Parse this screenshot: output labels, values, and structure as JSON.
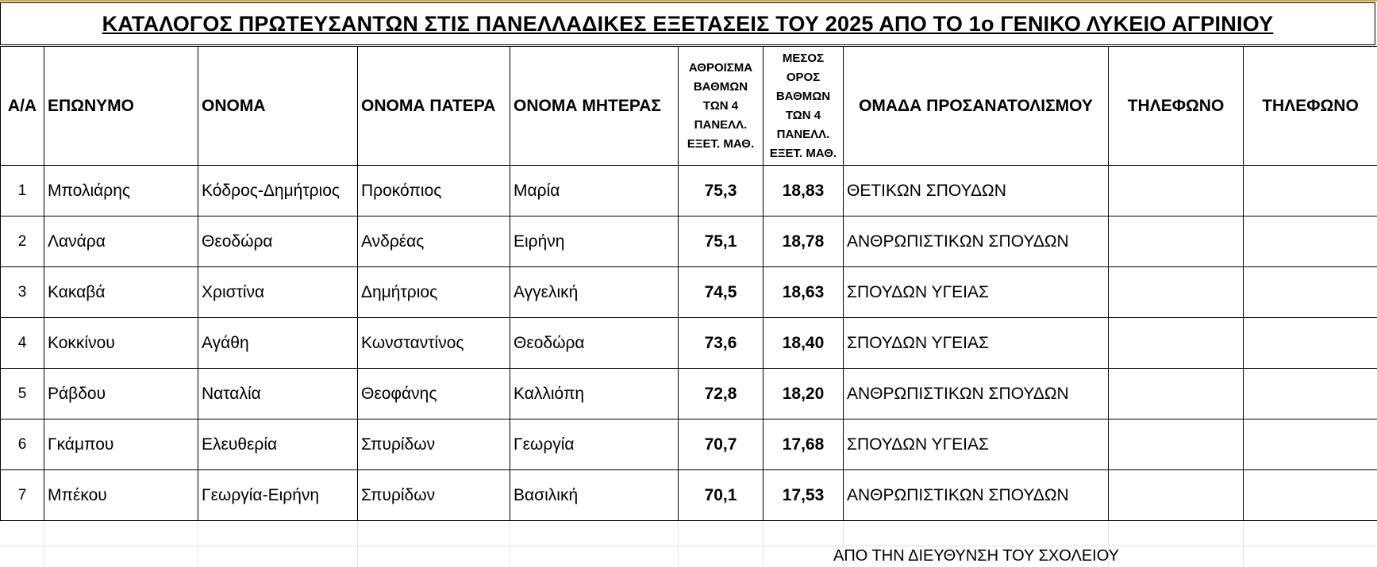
{
  "title": "ΚΑΤΑΛΟΓΟΣ ΠΡΩΤΕΥΣΑΝΤΩΝ ΣΤΙΣ ΠΑΝΕΛΛΑΔΙΚΕΣ ΕΞΕΤΑΣΕΙΣ ΤΟΥ 2025 ΑΠΟ ΤΟ 1ο ΓΕΝΙΚΟ ΛΥΚΕΙΟ ΑΓΡΙΝΙΟΥ",
  "headers": {
    "aa": "Α/Α",
    "surname": "ΕΠΩΝΥΜΟ",
    "name": "ΟΝΟΜΑ",
    "father": "ΟΝΟΜΑ ΠΑΤΕΡΑ",
    "mother": "ΟΝΟΜΑ ΜΗΤΕΡΑΣ",
    "sum": [
      "ΑΘΡΟΙΣΜΑ",
      "ΒΑΘΜΩΝ",
      "ΤΩΝ 4",
      "ΠΑΝΕΛΛ.",
      "ΕΞΕΤ. ΜΑΘ."
    ],
    "avg": [
      "ΜΕΣΟΣ",
      "ΟΡΟΣ",
      "ΒΑΘΜΩΝ",
      "ΤΩΝ 4",
      "ΠΑΝΕΛΛ.",
      "ΕΞΕΤ. ΜΑΘ."
    ],
    "group": "ΟΜΑΔΑ ΠΡΟΣΑΝΑΤΟΛΙΣΜΟΥ",
    "phone1": "ΤΗΛΕΦΩΝΟ",
    "phone2": "ΤΗΛΕΦΩΝΟ"
  },
  "rows": [
    {
      "aa": "1",
      "surname": "Μπολιάρης",
      "name": "Κόδρος-Δημήτριος",
      "father": "Προκόπιος",
      "mother": "Μαρία",
      "sum": "75,3",
      "avg": "18,83",
      "group": "ΘΕΤΙΚΩΝ ΣΠΟΥΔΩΝ",
      "phone1": "",
      "phone2": ""
    },
    {
      "aa": "2",
      "surname": "Λανάρα",
      "name": "Θεοδώρα",
      "father": "Ανδρέας",
      "mother": "Ειρήνη",
      "sum": "75,1",
      "avg": "18,78",
      "group": "ΑΝΘΡΩΠΙΣΤΙΚΩΝ ΣΠΟΥΔΩΝ",
      "phone1": "",
      "phone2": ""
    },
    {
      "aa": "3",
      "surname": "Κακαβά",
      "name": "Χριστίνα",
      "father": "Δημήτριος",
      "mother": "Αγγελική",
      "sum": "74,5",
      "avg": "18,63",
      "group": "ΣΠΟΥΔΩΝ ΥΓΕΙΑΣ",
      "phone1": "",
      "phone2": ""
    },
    {
      "aa": "4",
      "surname": "Κοκκίνου",
      "name": "Αγάθη",
      "father": "Κωνσταντίνος",
      "mother": "Θεοδώρα",
      "sum": "73,6",
      "avg": "18,40",
      "group": "ΣΠΟΥΔΩΝ ΥΓΕΙΑΣ",
      "phone1": "",
      "phone2": ""
    },
    {
      "aa": "5",
      "surname": "Ράβδου",
      "name": "Ναταλία",
      "father": "Θεοφάνης",
      "mother": "Καλλιόπη",
      "sum": "72,8",
      "avg": "18,20",
      "group": "ΑΝΘΡΩΠΙΣΤΙΚΩΝ ΣΠΟΥΔΩΝ",
      "phone1": "",
      "phone2": ""
    },
    {
      "aa": "6",
      "surname": "Γκάμπου",
      "name": "Ελευθερία",
      "father": "Σπυρίδων",
      "mother": "Γεωργία",
      "sum": "70,7",
      "avg": "17,68",
      "group": "ΣΠΟΥΔΩΝ ΥΓΕΙΑΣ",
      "phone1": "",
      "phone2": ""
    },
    {
      "aa": "7",
      "surname": "Μπέκου",
      "name": "Γεωργία-Ειρήνη",
      "father": "Σπυρίδων",
      "mother": "Βασιλική",
      "sum": "70,1",
      "avg": "17,53",
      "group": "ΑΝΘΡΩΠΙΣΤΙΚΩΝ ΣΠΟΥΔΩΝ",
      "phone1": "",
      "phone2": ""
    }
  ],
  "footer": "ΑΠΟ ΤΗΝ ΔΙΕΥΘΥΝΣΗ ΤΟΥ ΣΧΟΛΕΙΟΥ"
}
